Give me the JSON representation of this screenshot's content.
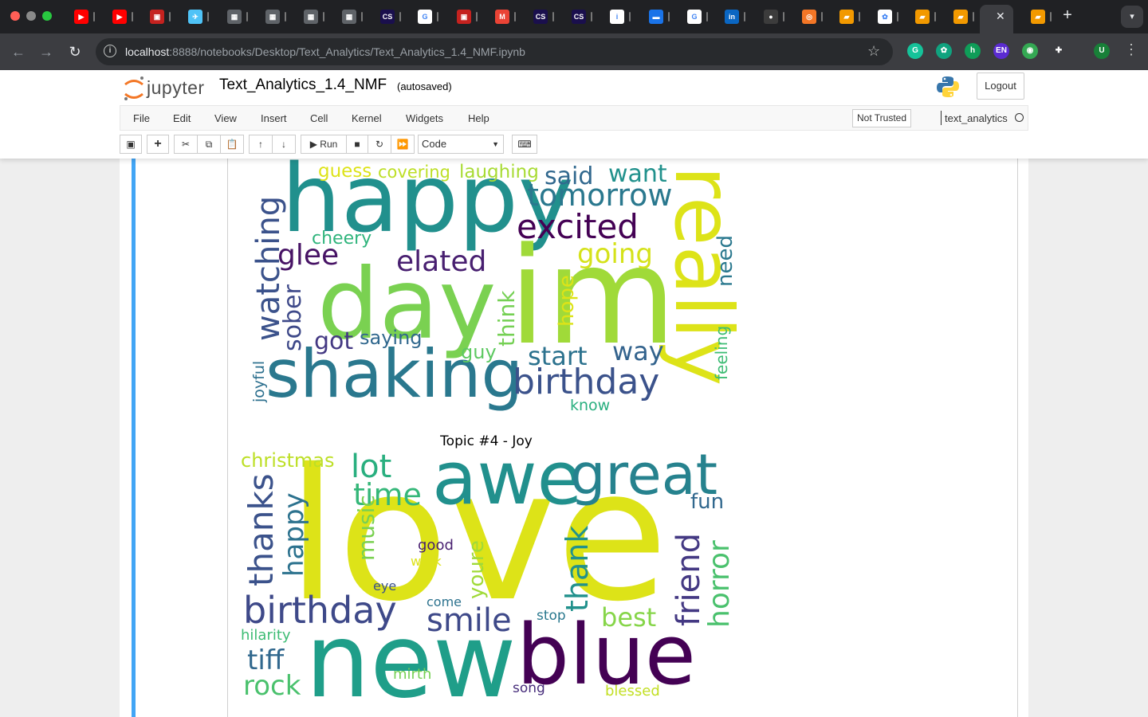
{
  "browser": {
    "tabs": [
      {
        "icon": "youtube-icon",
        "color": "#ff0000",
        "glyph": "▶"
      },
      {
        "icon": "youtube-icon",
        "color": "#ff0000",
        "glyph": "▶"
      },
      {
        "icon": "pdf-icon",
        "color": "#c5221f",
        "glyph": "▣"
      },
      {
        "icon": "bird-icon",
        "color": "#4fc3f7",
        "glyph": "✈"
      },
      {
        "icon": "qr-icon",
        "color": "#5f6368",
        "glyph": "▦"
      },
      {
        "icon": "qr-icon",
        "color": "#5f6368",
        "glyph": "▦"
      },
      {
        "icon": "qr-icon",
        "color": "#5f6368",
        "glyph": "▦"
      },
      {
        "icon": "qr-icon",
        "color": "#5f6368",
        "glyph": "▦"
      },
      {
        "icon": "cs-icon",
        "color": "#1a0f4d",
        "glyph": "CS"
      },
      {
        "icon": "google-icon",
        "color": "#ffffff",
        "glyph": "G"
      },
      {
        "icon": "pdf-icon",
        "color": "#c5221f",
        "glyph": "▣"
      },
      {
        "icon": "gmail-icon",
        "color": "#ea4335",
        "glyph": "M"
      },
      {
        "icon": "cs-icon",
        "color": "#1a0f4d",
        "glyph": "CS"
      },
      {
        "icon": "cs-icon",
        "color": "#1a0f4d",
        "glyph": "CS"
      },
      {
        "icon": "info-icon",
        "color": "#ffffff",
        "glyph": "i"
      },
      {
        "icon": "calendar-icon",
        "color": "#1a73e8",
        "glyph": "▬"
      },
      {
        "icon": "google-icon",
        "color": "#ffffff",
        "glyph": "G"
      },
      {
        "icon": "linkedin-icon",
        "color": "#0a66c2",
        "glyph": "in"
      },
      {
        "icon": "github-icon",
        "color": "#3c3c3c",
        "glyph": "●"
      },
      {
        "icon": "jupyter-icon",
        "color": "#f37626",
        "glyph": "◎"
      },
      {
        "icon": "book-icon",
        "color": "#f29900",
        "glyph": "▰"
      },
      {
        "icon": "openai-icon",
        "color": "#ffffff",
        "glyph": "✿"
      },
      {
        "icon": "book-icon",
        "color": "#f29900",
        "glyph": "▰"
      },
      {
        "icon": "book-icon",
        "color": "#f29900",
        "glyph": "▰"
      },
      {
        "icon": "book-icon",
        "color": "#f29900",
        "glyph": "▰"
      }
    ],
    "url_host": "localhost",
    "url_path": ":8888/notebooks/Desktop/Text_Analytics/Text_Analytics_1.4_NMF.ipynb",
    "extensions": [
      {
        "name": "grammarly-icon",
        "color": "#15c39a",
        "label": "G"
      },
      {
        "name": "chatgpt-extension-icon",
        "color": "#10a37f",
        "label": "✿"
      },
      {
        "name": "honey-icon",
        "color": "#0f9d58",
        "label": "h"
      },
      {
        "name": "language-extension-icon",
        "color": "#5b2bd1",
        "label": "EN"
      },
      {
        "name": "extension-icon",
        "color": "#34a853",
        "label": "◉"
      },
      {
        "name": "puzzle-icon",
        "color": "#3c3d41",
        "label": "✚"
      },
      {
        "name": "profile-avatar",
        "color": "#188038",
        "label": "U"
      }
    ]
  },
  "jupyter": {
    "logo_text": "jupyter",
    "notebook_title": "Text_Analytics_1.4_NMF",
    "autosave": "(autosaved)",
    "logout": "Logout",
    "menu": [
      "File",
      "Edit",
      "View",
      "Insert",
      "Cell",
      "Kernel",
      "Widgets",
      "Help"
    ],
    "trust": "Not Trusted",
    "kernel": "text_analytics",
    "toolbar": {
      "run_label": "Run",
      "cell_type": "Code"
    }
  },
  "output": {
    "topic4_title": "Topic #4 - Joy",
    "wordcloud_top": [
      {
        "w": "happy",
        "c": "#21908d"
      },
      {
        "w": "day",
        "c": "#7ad151"
      },
      {
        "w": "im",
        "c": "#a0da39"
      },
      {
        "w": "shaking",
        "c": "#2a788e"
      },
      {
        "w": "really",
        "c": "#dde318"
      },
      {
        "w": "excited",
        "c": "#440154"
      },
      {
        "w": "tomorrow",
        "c": "#2a788e"
      },
      {
        "w": "birthday",
        "c": "#3b528b"
      },
      {
        "w": "watching",
        "c": "#3b528b"
      },
      {
        "w": "elated",
        "c": "#481f70"
      },
      {
        "w": "glee",
        "c": "#471365"
      },
      {
        "w": "going",
        "c": "#d5e21a"
      },
      {
        "w": "said",
        "c": "#31688e"
      },
      {
        "w": "want",
        "c": "#21918c"
      },
      {
        "w": "guess",
        "c": "#dde318"
      },
      {
        "w": "covering",
        "c": "#bddf26"
      },
      {
        "w": "laughing",
        "c": "#a8db34"
      },
      {
        "w": "cheery",
        "c": "#2fb47c"
      },
      {
        "w": "sober",
        "c": "#3e4989"
      },
      {
        "w": "think",
        "c": "#75d054"
      },
      {
        "w": "hope",
        "c": "#dde318"
      },
      {
        "w": "need",
        "c": "#2a788e"
      },
      {
        "w": "got",
        "c": "#443983"
      },
      {
        "w": "saying",
        "c": "#31688e"
      },
      {
        "w": "start",
        "c": "#2c728e"
      },
      {
        "w": "way",
        "c": "#33638d"
      },
      {
        "w": "guy",
        "c": "#5ec962"
      },
      {
        "w": "feeling",
        "c": "#3dbc74"
      },
      {
        "w": "joyful",
        "c": "#2d708e"
      },
      {
        "w": "know",
        "c": "#29af7f"
      }
    ],
    "wordcloud_joy": [
      {
        "w": "love",
        "c": "#dde318"
      },
      {
        "w": "awe",
        "c": "#21908d"
      },
      {
        "w": "great",
        "c": "#26828e"
      },
      {
        "w": "new",
        "c": "#1f9e89"
      },
      {
        "w": "blue",
        "c": "#440154"
      },
      {
        "w": "birthday",
        "c": "#3e4989"
      },
      {
        "w": "christmas",
        "c": "#bddf26"
      },
      {
        "w": "lot",
        "c": "#29af7f"
      },
      {
        "w": "time",
        "c": "#35b779"
      },
      {
        "w": "thanks",
        "c": "#3b528b"
      },
      {
        "w": "happy",
        "c": "#2c728e"
      },
      {
        "w": "music",
        "c": "#7ad151"
      },
      {
        "w": "good",
        "c": "#481f70"
      },
      {
        "w": "work",
        "c": "#dde318"
      },
      {
        "w": "youre",
        "c": "#a0da39"
      },
      {
        "w": "thank",
        "c": "#21918c"
      },
      {
        "w": "fun",
        "c": "#31688e"
      },
      {
        "w": "friend",
        "c": "#443983"
      },
      {
        "w": "horror",
        "c": "#4ac16d"
      },
      {
        "w": "smile",
        "c": "#3e4989"
      },
      {
        "w": "best",
        "c": "#86d549"
      },
      {
        "w": "eye",
        "c": "#3b528b"
      },
      {
        "w": "come",
        "c": "#2c728e"
      },
      {
        "w": "stop",
        "c": "#2a788e"
      },
      {
        "w": "hilarity",
        "c": "#3dbc74"
      },
      {
        "w": "tiff",
        "c": "#31688e"
      },
      {
        "w": "rock",
        "c": "#4ac16d"
      },
      {
        "w": "mirth",
        "c": "#75d054"
      },
      {
        "w": "song",
        "c": "#472d7b"
      },
      {
        "w": "blessed",
        "c": "#c2df23"
      }
    ]
  }
}
